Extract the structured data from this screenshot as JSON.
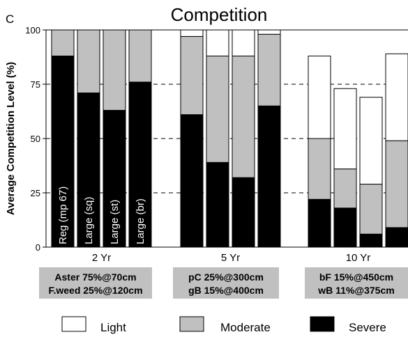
{
  "panel_letter": "C",
  "chart_data": {
    "type": "bar",
    "title": "Competition",
    "ylabel": "Average Competition Level (%)",
    "xlabel": "",
    "ylim": [
      0,
      100
    ],
    "yticks": [
      0,
      25,
      50,
      75,
      100
    ],
    "grid": "horizontal dashed at 75, 50, 25; solid at 100",
    "stacked": true,
    "groups": [
      {
        "label": "2 Yr",
        "bars": [
          {
            "label": "Reg (mp 67)",
            "severe": 88,
            "moderate": 12,
            "light": 0
          },
          {
            "label": "Large (sq)",
            "severe": 71,
            "moderate": 29,
            "light": 0
          },
          {
            "label": "Large (st)",
            "severe": 63,
            "moderate": 37,
            "light": 0
          },
          {
            "label": "Large (br)",
            "severe": 76,
            "moderate": 24,
            "light": 0
          }
        ],
        "annotation": [
          "Aster 75%@70cm",
          "F.weed 25%@120cm"
        ]
      },
      {
        "label": "5 Yr",
        "bars": [
          {
            "label": "",
            "severe": 61,
            "moderate": 36,
            "light": 3
          },
          {
            "label": "",
            "severe": 39,
            "moderate": 49,
            "light": 12
          },
          {
            "label": "",
            "severe": 32,
            "moderate": 56,
            "light": 12
          },
          {
            "label": "",
            "severe": 65,
            "moderate": 33,
            "light": 2
          }
        ],
        "annotation": [
          "pC 25%@300cm",
          "gB 15%@400cm"
        ]
      },
      {
        "label": "10 Yr",
        "bars": [
          {
            "label": "",
            "severe": 22,
            "moderate": 28,
            "light": 38
          },
          {
            "label": "",
            "severe": 18,
            "moderate": 18,
            "light": 37
          },
          {
            "label": "",
            "severe": 6,
            "moderate": 23,
            "light": 40
          },
          {
            "label": "",
            "severe": 9,
            "moderate": 40,
            "light": 40
          }
        ],
        "annotation": [
          "bF 15%@450cm",
          "wB 11%@375cm"
        ]
      }
    ],
    "legend": [
      {
        "name": "Light",
        "color": "#ffffff"
      },
      {
        "name": "Moderate",
        "color": "#c0c0c0"
      },
      {
        "name": "Severe",
        "color": "#000000"
      }
    ],
    "legend_position": "bottom",
    "colors": {
      "severe": "#000000",
      "moderate": "#c0c0c0",
      "light": "#ffffff",
      "annotation_box": "#c0c0c0"
    }
  }
}
